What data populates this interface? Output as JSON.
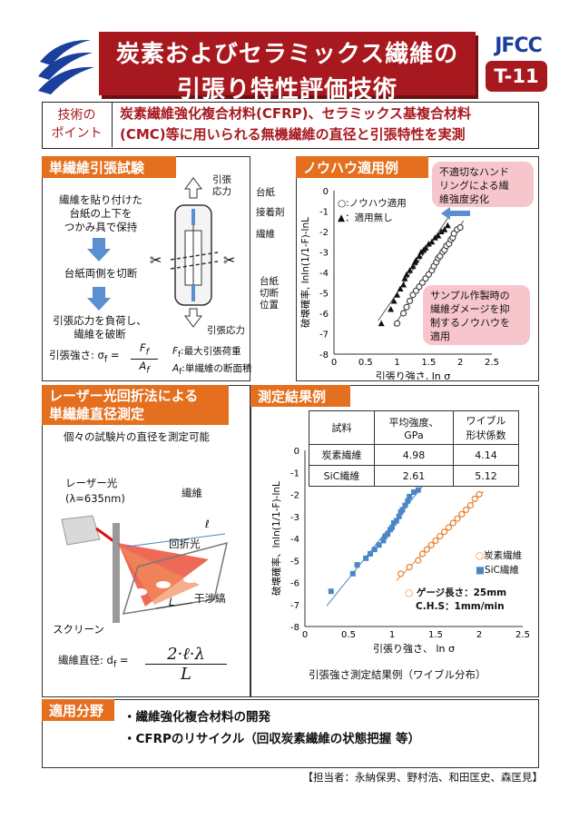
{
  "header": {
    "title_line1": "炭素およびセラミックス繊維の",
    "title_line2": "引張り特性評価技術",
    "org": "JFCC",
    "code": "T-11"
  },
  "point": {
    "label_line1": "技術の",
    "label_line2": "ポイント",
    "text_line1": "炭素繊維強化複合材料(CFRP)、セラミックス基複合材料",
    "text_line2": "(CMC)等に用いられる無機繊維の直径と引張特性を実測"
  },
  "single_fiber": {
    "heading": "単繊維引張試験",
    "step1_line1": "繊維を貼り付けた",
    "step1_line2": "台紙の上下を",
    "step1_line3": "つかみ具で保持",
    "step2": "台紙両側を切断",
    "step3_line1": "引張応力を負荷し、",
    "step3_line2": "繊維を破断",
    "stress_top_line1": "引張",
    "stress_top_line2": "応力",
    "stress_bottom": "引張応力",
    "label_mount": "台紙",
    "label_adhesive": "接着剤",
    "label_fiber": "繊維",
    "label_cut_line1": "台紙",
    "label_cut_line2": "切断",
    "label_cut_line3": "位置",
    "strength_label": "引張強さ: σ",
    "strength_sub": "f",
    "strength_eq": " =",
    "frac_num": "F",
    "frac_num_sub": "f",
    "frac_den": "A",
    "frac_den_sub": "f",
    "def_F": "F",
    "def_F_sub": "f",
    "def_F_text": ":最大引張荷重",
    "def_A": "A",
    "def_A_sub": "f",
    "def_A_text": ":単繊維の断面積"
  },
  "knowhow": {
    "heading": "ノウハウ適用例",
    "legend_applied": "○:ノウハウ適用",
    "legend_none": "▲：適用無し",
    "callout_top_line1": "不適切なハンド",
    "callout_top_line2": "リングによる繊",
    "callout_top_line3": "維強度劣化",
    "callout_bottom_line1": "サンプル作製時の",
    "callout_bottom_line2": "繊維ダメージを抑",
    "callout_bottom_line3": "制するノウハウを",
    "callout_bottom_line4": "適用"
  },
  "laser": {
    "heading_line1": "レーザー光回折法による",
    "heading_line2": "単繊維直径測定",
    "desc": "個々の試験片の直径を測定可能",
    "label_laser_line1": "レーザー光",
    "label_laser_line2": "(λ=635nm)",
    "label_fiber": "繊維",
    "label_diffraction": "回折光",
    "label_fringes": "干渉縞",
    "label_screen": "スクリーン",
    "label_l": "ℓ",
    "label_L": "L",
    "diameter_label": "繊維直径: d",
    "diameter_sub": "f",
    "diameter_eq": " =",
    "formula_num": "2·ℓ·λ",
    "formula_den": "L"
  },
  "results": {
    "heading": "測定結果例",
    "table_headers": [
      "試料",
      "平均強度、GPa",
      "ワイブル形状係数"
    ],
    "table_header_line1": [
      "",
      "平均強度、",
      "ワイブル"
    ],
    "table_header_line2": [
      "試料",
      "GPa",
      "形状係数"
    ],
    "table_rows": [
      [
        "炭素繊維",
        "4.98",
        "4.14"
      ],
      [
        "SiC繊維",
        "2.61",
        "5.12"
      ]
    ],
    "legend_carbon": "炭素繊維",
    "legend_sic": "SiC繊維",
    "gauge_line1": "ゲージ長さ：25mm",
    "gauge_line2": "C.H.S：1mm/min",
    "caption": "引張強さ測定結果例（ワイブル分布）"
  },
  "application": {
    "heading": "適用分野",
    "item1": "・繊維強化複合材料の開発",
    "item2": "・CFRPのリサイクル（回収炭素繊維の状態把握 等）"
  },
  "footer": {
    "contact": "【担当者：永納保男、野村浩、和田匡史、森匡見】"
  },
  "colors": {
    "title_red": "#a8191f",
    "section_orange": "#e46f1e",
    "jfcc_blue": "#1b3f9c",
    "callout_pink": "#f7c5cc",
    "carbon_orange": "#e8802b",
    "sic_blue": "#4a86c8"
  },
  "chart_data": [
    {
      "type": "scatter",
      "xlabel": "引張り強さ, ln σ",
      "ylabel": "破壊確率, lnln(1/1-F)-lnL",
      "xlim": [
        0,
        2.5
      ],
      "ylim": [
        -8,
        0
      ],
      "xticks": [
        "0",
        "0.5",
        "1",
        "1.5",
        "2",
        "2.5"
      ],
      "yticks": [
        "0",
        "-1",
        "-2",
        "-3",
        "-4",
        "-5",
        "-6",
        "-7",
        "-8"
      ],
      "series": [
        {
          "name": "ノウハウ適用",
          "marker": "open-circle",
          "x": [
            1.0,
            1.1,
            1.15,
            1.2,
            1.25,
            1.3,
            1.35,
            1.4,
            1.45,
            1.5,
            1.55,
            1.58,
            1.62,
            1.65,
            1.68,
            1.72,
            1.75,
            1.78,
            1.82,
            1.85,
            1.88,
            1.9,
            1.95,
            2.0
          ],
          "y": [
            -6.5,
            -6.0,
            -5.7,
            -5.4,
            -5.1,
            -4.9,
            -4.7,
            -4.5,
            -4.3,
            -4.1,
            -3.9,
            -3.7,
            -3.5,
            -3.3,
            -3.2,
            -3.0,
            -2.9,
            -2.7,
            -2.6,
            -2.4,
            -2.3,
            -2.1,
            -1.9,
            -1.8
          ]
        },
        {
          "name": "適用無し",
          "marker": "filled-triangle",
          "x": [
            0.75,
            0.9,
            0.95,
            1.0,
            1.05,
            1.1,
            1.12,
            1.15,
            1.2,
            1.25,
            1.28,
            1.3,
            1.35,
            1.38,
            1.42,
            1.45,
            1.5,
            1.55,
            1.6,
            1.65,
            1.7,
            1.75,
            1.8
          ],
          "y": [
            -6.5,
            -5.8,
            -5.4,
            -5.1,
            -4.8,
            -4.6,
            -4.3,
            -4.1,
            -3.9,
            -3.7,
            -3.5,
            -3.4,
            -3.2,
            -3.0,
            -2.9,
            -2.8,
            -2.6,
            -2.5,
            -2.3,
            -2.2,
            -2.0,
            -1.9,
            -1.7
          ]
        }
      ]
    },
    {
      "type": "scatter",
      "xlabel": "引張り強さ、 ln σ",
      "ylabel": "破壊確率、lnln(1/1-F)-lnL",
      "xlim": [
        0,
        2.5
      ],
      "ylim": [
        -8,
        0
      ],
      "xticks": [
        "0",
        "0.5",
        "1",
        "1.5",
        "2",
        "2.5"
      ],
      "yticks": [
        "0",
        "-1",
        "-2",
        "-3",
        "-4",
        "-5",
        "-6",
        "-7",
        "-8"
      ],
      "series": [
        {
          "name": "炭素繊維",
          "marker": "open-circle",
          "x": [
            1.1,
            1.2,
            1.3,
            1.35,
            1.4,
            1.45,
            1.5,
            1.55,
            1.6,
            1.65,
            1.7,
            1.75,
            1.8,
            1.85,
            1.9,
            1.95,
            2.0
          ],
          "y": [
            -5.6,
            -5.3,
            -5.0,
            -4.7,
            -4.5,
            -4.3,
            -4.1,
            -3.9,
            -3.7,
            -3.5,
            -3.3,
            -3.1,
            -2.9,
            -2.7,
            -2.5,
            -2.2,
            -2.0
          ]
        },
        {
          "name": "SiC繊維",
          "marker": "filled-square",
          "x": [
            0.3,
            0.55,
            0.6,
            0.7,
            0.75,
            0.8,
            0.85,
            0.9,
            0.92,
            0.95,
            0.98,
            1.0,
            1.02,
            1.05,
            1.08,
            1.1,
            1.12,
            1.15,
            1.18,
            1.2,
            1.25,
            1.3
          ],
          "y": [
            -6.4,
            -5.6,
            -5.2,
            -4.9,
            -4.7,
            -4.5,
            -4.3,
            -4.1,
            -3.9,
            -3.8,
            -3.6,
            -3.5,
            -3.3,
            -3.2,
            -3.0,
            -2.8,
            -2.7,
            -2.5,
            -2.3,
            -2.1,
            -1.9,
            -1.8
          ]
        }
      ]
    }
  ]
}
